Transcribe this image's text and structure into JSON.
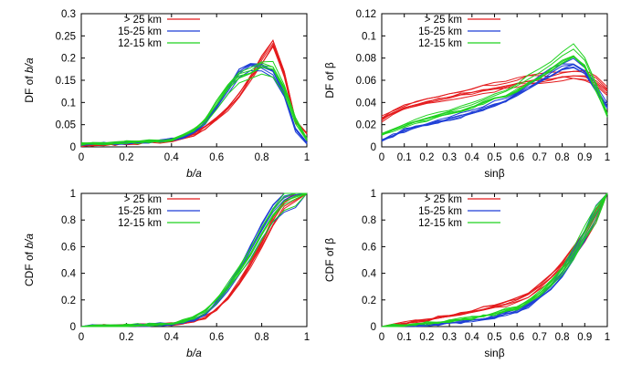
{
  "figure": "four-panel",
  "legend_entries": [
    {
      "label": "> 25 km",
      "color": "#e41a1c"
    },
    {
      "label": "15-25 km",
      "color": "#1f3fd6"
    },
    {
      "label": "12-15 km",
      "color": "#1fd21f"
    }
  ],
  "chart_data": [
    {
      "id": "df_ba",
      "type": "line",
      "xlabel": "b/a",
      "ylabel": "DF of b/a",
      "xlim": [
        0,
        1
      ],
      "ylim": [
        0,
        0.3
      ],
      "xticks": [
        0,
        0.2,
        0.4,
        0.6,
        0.8,
        1
      ],
      "yticks": [
        0,
        0.05,
        0.1,
        0.15,
        0.2,
        0.25,
        0.3
      ],
      "grid": false,
      "legend": "top-left",
      "x": [
        0,
        0.05,
        0.1,
        0.15,
        0.2,
        0.25,
        0.3,
        0.35,
        0.4,
        0.45,
        0.5,
        0.55,
        0.6,
        0.65,
        0.7,
        0.75,
        0.8,
        0.85,
        0.9,
        0.95,
        1.0
      ],
      "series": [
        {
          "name": "> 25 km",
          "color": "#e41a1c",
          "values": [
            0.004,
            0.005,
            0.006,
            0.007,
            0.008,
            0.009,
            0.01,
            0.012,
            0.015,
            0.02,
            0.03,
            0.045,
            0.065,
            0.09,
            0.12,
            0.16,
            0.2,
            0.24,
            0.17,
            0.06,
            0.03
          ]
        },
        {
          "name": "15-25 km",
          "color": "#1f3fd6",
          "values": [
            0.005,
            0.006,
            0.007,
            0.008,
            0.009,
            0.01,
            0.011,
            0.013,
            0.016,
            0.022,
            0.035,
            0.055,
            0.09,
            0.13,
            0.17,
            0.185,
            0.18,
            0.17,
            0.12,
            0.04,
            0.01
          ]
        },
        {
          "name": "12-15 km",
          "color": "#1fd21f",
          "values": [
            0.006,
            0.007,
            0.008,
            0.009,
            0.01,
            0.011,
            0.012,
            0.014,
            0.017,
            0.024,
            0.038,
            0.06,
            0.095,
            0.13,
            0.155,
            0.165,
            0.18,
            0.175,
            0.13,
            0.06,
            0.015
          ]
        }
      ]
    },
    {
      "id": "df_beta",
      "type": "line",
      "xlabel": "sinβ",
      "ylabel": "DF of β",
      "xlim": [
        0,
        1
      ],
      "ylim": [
        0,
        0.12
      ],
      "xticks": [
        0,
        0.1,
        0.2,
        0.3,
        0.4,
        0.5,
        0.6,
        0.7,
        0.8,
        0.9,
        1
      ],
      "yticks": [
        0,
        0.02,
        0.04,
        0.06,
        0.08,
        0.1,
        0.12
      ],
      "grid": false,
      "legend": "top-left",
      "x": [
        0,
        0.05,
        0.1,
        0.15,
        0.2,
        0.25,
        0.3,
        0.35,
        0.4,
        0.45,
        0.5,
        0.55,
        0.6,
        0.65,
        0.7,
        0.75,
        0.8,
        0.85,
        0.9,
        0.95,
        1.0
      ],
      "series": [
        {
          "name": "> 25 km",
          "color": "#e41a1c",
          "values": [
            0.025,
            0.03,
            0.035,
            0.038,
            0.041,
            0.043,
            0.045,
            0.047,
            0.049,
            0.051,
            0.053,
            0.055,
            0.057,
            0.059,
            0.06,
            0.061,
            0.063,
            0.064,
            0.063,
            0.058,
            0.05
          ]
        },
        {
          "name": "15-25 km",
          "color": "#1f3fd6",
          "values": [
            0.005,
            0.01,
            0.014,
            0.017,
            0.02,
            0.022,
            0.024,
            0.027,
            0.03,
            0.033,
            0.037,
            0.041,
            0.046,
            0.052,
            0.058,
            0.064,
            0.07,
            0.072,
            0.066,
            0.05,
            0.035
          ]
        },
        {
          "name": "12-15 km",
          "color": "#1fd21f",
          "values": [
            0.012,
            0.016,
            0.02,
            0.023,
            0.026,
            0.029,
            0.032,
            0.035,
            0.038,
            0.042,
            0.046,
            0.05,
            0.055,
            0.061,
            0.067,
            0.074,
            0.082,
            0.088,
            0.078,
            0.055,
            0.03
          ]
        }
      ]
    },
    {
      "id": "cdf_ba",
      "type": "line",
      "xlabel": "b/a",
      "ylabel": "CDF of b/a",
      "xlim": [
        0,
        1
      ],
      "ylim": [
        0,
        1
      ],
      "xticks": [
        0,
        0.2,
        0.4,
        0.6,
        0.8,
        1
      ],
      "yticks": [
        0,
        0.2,
        0.4,
        0.6,
        0.8,
        1
      ],
      "grid": false,
      "legend": "top-left",
      "x": [
        0,
        0.05,
        0.1,
        0.15,
        0.2,
        0.25,
        0.3,
        0.35,
        0.4,
        0.45,
        0.5,
        0.55,
        0.6,
        0.65,
        0.7,
        0.75,
        0.8,
        0.85,
        0.9,
        0.95,
        1.0
      ],
      "series": [
        {
          "name": "> 25 km",
          "color": "#e41a1c",
          "values": [
            0,
            0.002,
            0.004,
            0.006,
            0.008,
            0.01,
            0.012,
            0.015,
            0.018,
            0.025,
            0.04,
            0.07,
            0.13,
            0.22,
            0.33,
            0.47,
            0.62,
            0.8,
            0.93,
            0.98,
            1.0
          ]
        },
        {
          "name": "15-25 km",
          "color": "#1f3fd6",
          "values": [
            0,
            0.002,
            0.004,
            0.006,
            0.008,
            0.01,
            0.013,
            0.016,
            0.02,
            0.03,
            0.05,
            0.09,
            0.17,
            0.28,
            0.42,
            0.57,
            0.72,
            0.86,
            0.95,
            0.99,
            1.0
          ]
        },
        {
          "name": "12-15 km",
          "color": "#1fd21f",
          "values": [
            0,
            0.002,
            0.004,
            0.006,
            0.008,
            0.011,
            0.014,
            0.018,
            0.024,
            0.04,
            0.07,
            0.12,
            0.2,
            0.3,
            0.42,
            0.55,
            0.7,
            0.84,
            0.94,
            0.98,
            1.0
          ]
        }
      ]
    },
    {
      "id": "cdf_beta",
      "type": "line",
      "xlabel": "sinβ",
      "ylabel": "CDF of β",
      "xlim": [
        0,
        1
      ],
      "ylim": [
        0,
        1
      ],
      "xticks": [
        0,
        0.1,
        0.2,
        0.3,
        0.4,
        0.5,
        0.6,
        0.7,
        0.8,
        0.9,
        1
      ],
      "yticks": [
        0,
        0.2,
        0.4,
        0.6,
        0.8,
        1
      ],
      "grid": false,
      "legend": "top-left",
      "x": [
        0,
        0.05,
        0.1,
        0.15,
        0.2,
        0.25,
        0.3,
        0.35,
        0.4,
        0.45,
        0.5,
        0.55,
        0.6,
        0.65,
        0.7,
        0.75,
        0.8,
        0.85,
        0.9,
        0.95,
        1.0
      ],
      "series": [
        {
          "name": "> 25 km",
          "color": "#e41a1c",
          "values": [
            0,
            0.012,
            0.025,
            0.037,
            0.05,
            0.064,
            0.078,
            0.093,
            0.11,
            0.13,
            0.15,
            0.17,
            0.2,
            0.24,
            0.3,
            0.37,
            0.46,
            0.56,
            0.68,
            0.83,
            1.0
          ]
        },
        {
          "name": "15-25 km",
          "color": "#1f3fd6",
          "values": [
            0,
            0.003,
            0.006,
            0.01,
            0.015,
            0.021,
            0.028,
            0.036,
            0.046,
            0.058,
            0.074,
            0.094,
            0.12,
            0.16,
            0.22,
            0.3,
            0.4,
            0.53,
            0.68,
            0.85,
            1.0
          ]
        },
        {
          "name": "12-15 km",
          "color": "#1fd21f",
          "values": [
            0,
            0.006,
            0.012,
            0.018,
            0.025,
            0.033,
            0.042,
            0.052,
            0.064,
            0.078,
            0.095,
            0.12,
            0.15,
            0.19,
            0.25,
            0.33,
            0.43,
            0.56,
            0.71,
            0.86,
            1.0
          ]
        }
      ]
    }
  ]
}
